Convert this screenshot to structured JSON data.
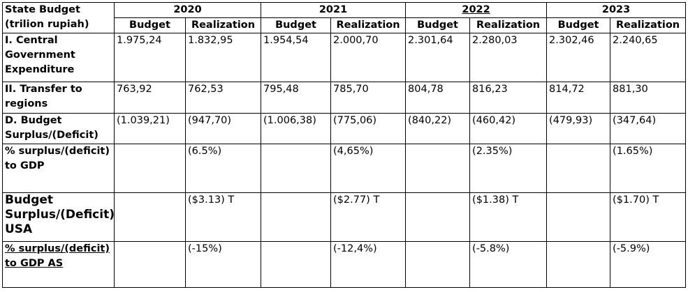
{
  "header": {
    "title": "State Budget (trilion rupiah)",
    "years": [
      "2020",
      "2021",
      "2022",
      "2023"
    ],
    "subcolumns": [
      "Budget",
      "Realization"
    ]
  },
  "rows": [
    {
      "label": "I. Central Government Expenditure",
      "cells": [
        "1.975,24",
        "1.832,95",
        "1.954,54",
        "2.000,70",
        "2.301,64",
        "2.280,03",
        "2.302,46",
        "2.240,65"
      ]
    },
    {
      "label": "II. Transfer to regions",
      "cells": [
        "763,92",
        "762,53",
        "795,48",
        "785,70",
        "804,78",
        "816,23",
        "814,72",
        "881,30"
      ]
    },
    {
      "label": "D. Budget Surplus/(Deficit)",
      "cells": [
        "(1.039,21)",
        "(947,70)",
        "(1.006,38)",
        "(775,06)",
        "(840,22)",
        "(460,42)",
        "(479,93)",
        "(347,64)"
      ]
    },
    {
      "label": "% surplus/(deficit) to GDP",
      "cells": [
        null,
        "(6.5%)",
        null,
        "(4,65%)",
        null,
        "(2.35%)",
        null,
        "(1.65%)"
      ]
    },
    {
      "label": "Budget Surplus/(Deficit) USA",
      "cells": [
        null,
        "($3.13) T",
        null,
        "($2.77) T",
        null,
        "($1.38) T",
        null,
        "($1.70) T"
      ]
    },
    {
      "label": "% surplus/(deficit) to GDP AS",
      "cells": [
        null,
        "(-15%)",
        null,
        "(-12,4%)",
        null,
        "(-5.8%)",
        null,
        "(-5.9%)"
      ]
    }
  ]
}
